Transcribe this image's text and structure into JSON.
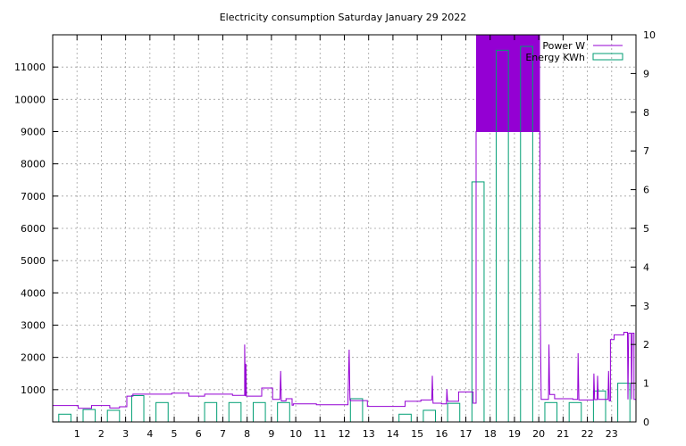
{
  "chart_data": {
    "type": "line",
    "title": "Electricity consumption Saturday January 29 2022",
    "xlabel": "",
    "ylabel": "",
    "y2label": "",
    "grid": true,
    "legend_position": "top-right",
    "x_ticks": [
      1,
      2,
      3,
      4,
      5,
      6,
      7,
      8,
      9,
      10,
      11,
      12,
      13,
      14,
      15,
      16,
      17,
      18,
      19,
      20,
      21,
      22,
      23
    ],
    "xlim": [
      0,
      24
    ],
    "y_ticks": [
      1000,
      2000,
      3000,
      4000,
      5000,
      6000,
      7000,
      8000,
      9000,
      10000,
      11000
    ],
    "ylim": [
      0,
      12000
    ],
    "y2_ticks": [
      0,
      1,
      2,
      3,
      4,
      5,
      6,
      7,
      8,
      9,
      10
    ],
    "y2lim": [
      0,
      10
    ],
    "colors": {
      "power": "#9400d3",
      "energy": "#009e73"
    },
    "series": [
      {
        "name": "Power W",
        "axis": "y",
        "style": "step-line",
        "points": [
          [
            0,
            510
          ],
          [
            1.05,
            510
          ],
          [
            1.05,
            420
          ],
          [
            1.6,
            420
          ],
          [
            1.6,
            510
          ],
          [
            2.35,
            510
          ],
          [
            2.35,
            430
          ],
          [
            2.75,
            430
          ],
          [
            2.75,
            470
          ],
          [
            3.05,
            470
          ],
          [
            3.05,
            800
          ],
          [
            3.3,
            800
          ],
          [
            3.3,
            860
          ],
          [
            4.9,
            860
          ],
          [
            4.9,
            890
          ],
          [
            5.6,
            890
          ],
          [
            5.6,
            800
          ],
          [
            6.25,
            800
          ],
          [
            6.25,
            860
          ],
          [
            7.4,
            860
          ],
          [
            7.4,
            820
          ],
          [
            7.9,
            820
          ],
          [
            7.9,
            2400
          ],
          [
            7.93,
            800
          ],
          [
            7.95,
            1800
          ],
          [
            7.97,
            800
          ],
          [
            8.6,
            800
          ],
          [
            8.6,
            1050
          ],
          [
            9.05,
            1050
          ],
          [
            9.05,
            700
          ],
          [
            9.35,
            700
          ],
          [
            9.38,
            1580
          ],
          [
            9.41,
            650
          ],
          [
            9.6,
            650
          ],
          [
            9.6,
            720
          ],
          [
            9.85,
            720
          ],
          [
            9.85,
            520
          ],
          [
            9.9,
            520
          ],
          [
            9.9,
            560
          ],
          [
            10.85,
            560
          ],
          [
            10.85,
            530
          ],
          [
            12.15,
            530
          ],
          [
            12.15,
            730
          ],
          [
            12.2,
            2240
          ],
          [
            12.23,
            680
          ],
          [
            12.25,
            680
          ],
          [
            12.25,
            660
          ],
          [
            12.95,
            660
          ],
          [
            12.95,
            480
          ],
          [
            14.5,
            480
          ],
          [
            14.5,
            640
          ],
          [
            15.15,
            640
          ],
          [
            15.15,
            680
          ],
          [
            15.6,
            680
          ],
          [
            15.62,
            1430
          ],
          [
            15.65,
            580
          ],
          [
            16,
            580
          ],
          [
            16,
            560
          ],
          [
            16.2,
            560
          ],
          [
            16.22,
            1020
          ],
          [
            16.25,
            640
          ],
          [
            16.7,
            640
          ],
          [
            16.7,
            930
          ],
          [
            17.3,
            930
          ],
          [
            17.3,
            580
          ],
          [
            17.42,
            580
          ],
          [
            17.42,
            9000
          ],
          [
            20.05,
            9000
          ],
          [
            20.05,
            5200
          ],
          [
            20.08,
            2200
          ],
          [
            20.1,
            700
          ],
          [
            20.4,
            700
          ],
          [
            20.42,
            2400
          ],
          [
            20.45,
            850
          ],
          [
            20.65,
            850
          ],
          [
            20.65,
            720
          ],
          [
            21.4,
            720
          ],
          [
            21.4,
            700
          ],
          [
            21.6,
            700
          ],
          [
            21.62,
            2130
          ],
          [
            21.65,
            680
          ],
          [
            22.25,
            680
          ],
          [
            22.27,
            1500
          ],
          [
            22.3,
            690
          ],
          [
            22.4,
            690
          ],
          [
            22.42,
            1430
          ],
          [
            22.45,
            700
          ],
          [
            22.85,
            700
          ],
          [
            22.87,
            1580
          ],
          [
            22.9,
            650
          ],
          [
            22.95,
            650
          ],
          [
            22.95,
            2550
          ],
          [
            23.1,
            2550
          ],
          [
            23.1,
            2700
          ],
          [
            23.5,
            2700
          ],
          [
            23.5,
            2780
          ],
          [
            23.65,
            2780
          ],
          [
            23.67,
            700
          ],
          [
            23.7,
            2750
          ],
          [
            23.8,
            2750
          ],
          [
            23.82,
            700
          ],
          [
            23.85,
            2750
          ],
          [
            23.92,
            2750
          ],
          [
            23.92,
            700
          ],
          [
            24,
            700
          ]
        ]
      },
      {
        "name": "Energy KWh",
        "axis": "y2",
        "style": "boxes",
        "bar_width": 0.5,
        "x": [
          0,
          1,
          2,
          3,
          4,
          5,
          6,
          7,
          8,
          9,
          10,
          11,
          12,
          13,
          14,
          15,
          16,
          17,
          18,
          19,
          20,
          21,
          22,
          23
        ],
        "values": [
          0.2,
          0.32,
          0.3,
          0.68,
          0.5,
          0,
          0.5,
          0.5,
          0.5,
          0.5,
          0,
          0,
          0.6,
          0,
          0.2,
          0.3,
          0.48,
          6.2,
          9.6,
          9.7,
          0.5,
          0.5,
          0.8,
          1.0
        ]
      }
    ],
    "fill_region": {
      "x_from": 17.42,
      "x_to": 20.05,
      "y_from": 9000,
      "y_to": 12000
    }
  }
}
